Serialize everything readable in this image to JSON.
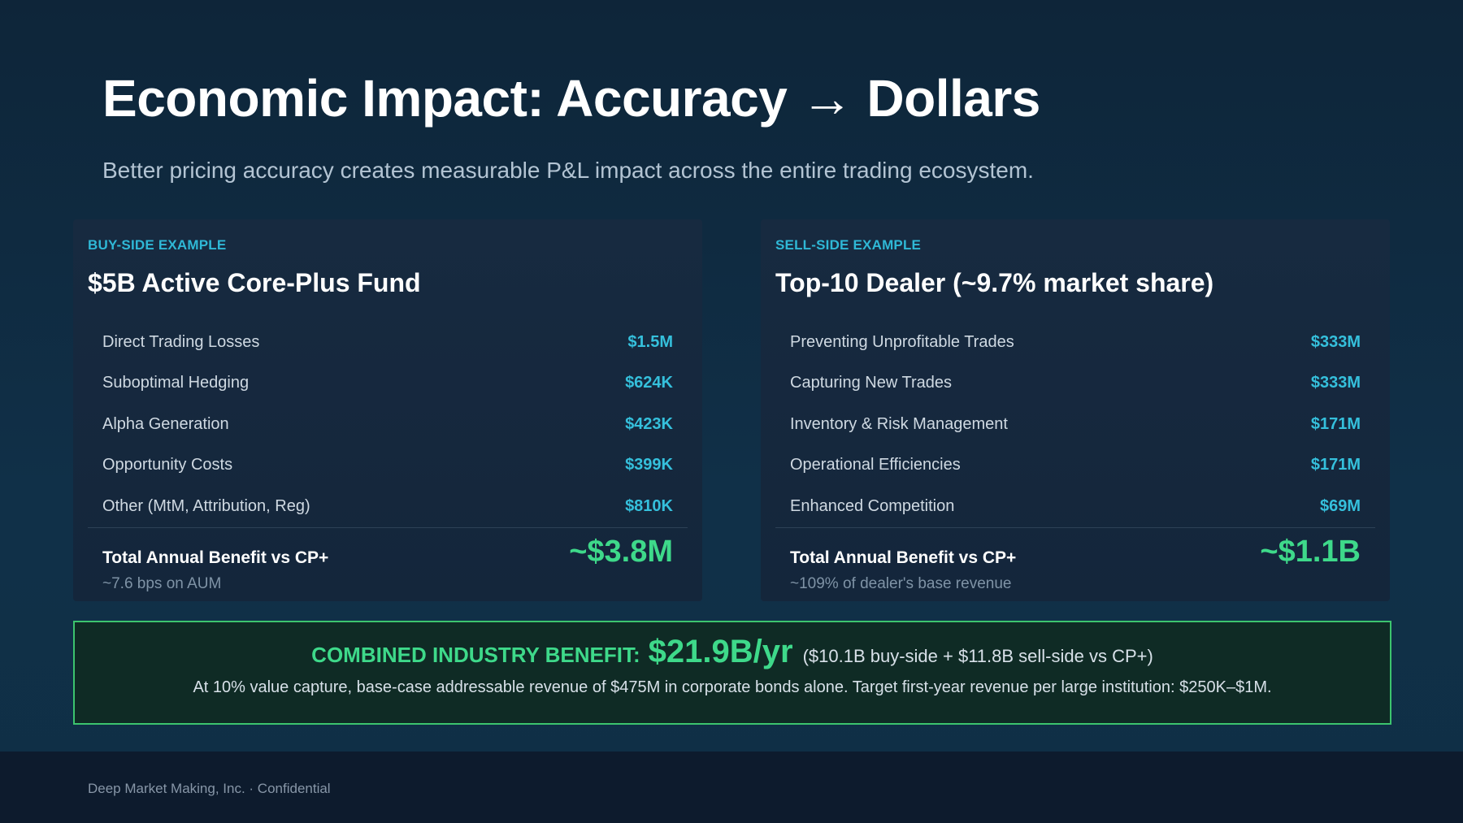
{
  "title": "Economic Impact: Accuracy → Dollars",
  "subtitle": "Better pricing accuracy creates measurable P&L impact across the entire trading ecosystem.",
  "buy_side": {
    "eyebrow": "BUY-SIDE EXAMPLE",
    "heading": "$5B Active Core-Plus Fund",
    "rows": [
      {
        "label": "Direct Trading Losses",
        "value": "$1.5M"
      },
      {
        "label": "Suboptimal Hedging",
        "value": "$624K"
      },
      {
        "label": "Alpha Generation",
        "value": "$423K"
      },
      {
        "label": "Opportunity Costs",
        "value": "$399K"
      },
      {
        "label": "Other (MtM, Attribution, Reg)",
        "value": "$810K"
      }
    ],
    "total_label": "Total Annual Benefit vs CP+",
    "total_value": "~$3.8M",
    "note": "~7.6 bps on AUM"
  },
  "sell_side": {
    "eyebrow": "SELL-SIDE EXAMPLE",
    "heading": "Top-10 Dealer (~9.7% market share)",
    "rows": [
      {
        "label": "Preventing Unprofitable Trades",
        "value": "$333M"
      },
      {
        "label": "Capturing New Trades",
        "value": "$333M"
      },
      {
        "label": "Inventory & Risk Management",
        "value": "$171M"
      },
      {
        "label": "Operational Efficiencies",
        "value": "$171M"
      },
      {
        "label": "Enhanced Competition",
        "value": "$69M"
      }
    ],
    "total_label": "Total Annual Benefit vs CP+",
    "total_value": "~$1.1B",
    "note": "~109% of dealer's base revenue"
  },
  "combined": {
    "label": "COMBINED INDUSTRY BENEFIT:",
    "value": "$21.9B/yr",
    "detail": "($10.1B buy-side + $11.8B sell-side vs CP+)",
    "description": "At 10% value capture, base-case addressable revenue of $475M in corporate bonds alone. Target first-year revenue per large institution: $250K–$1M."
  },
  "footer": {
    "text": "Deep Market Making, Inc. · Confidential"
  },
  "colors": {
    "accent_cyan": "#35c0dc",
    "accent_green": "#3ed98a",
    "background": "#103048"
  }
}
